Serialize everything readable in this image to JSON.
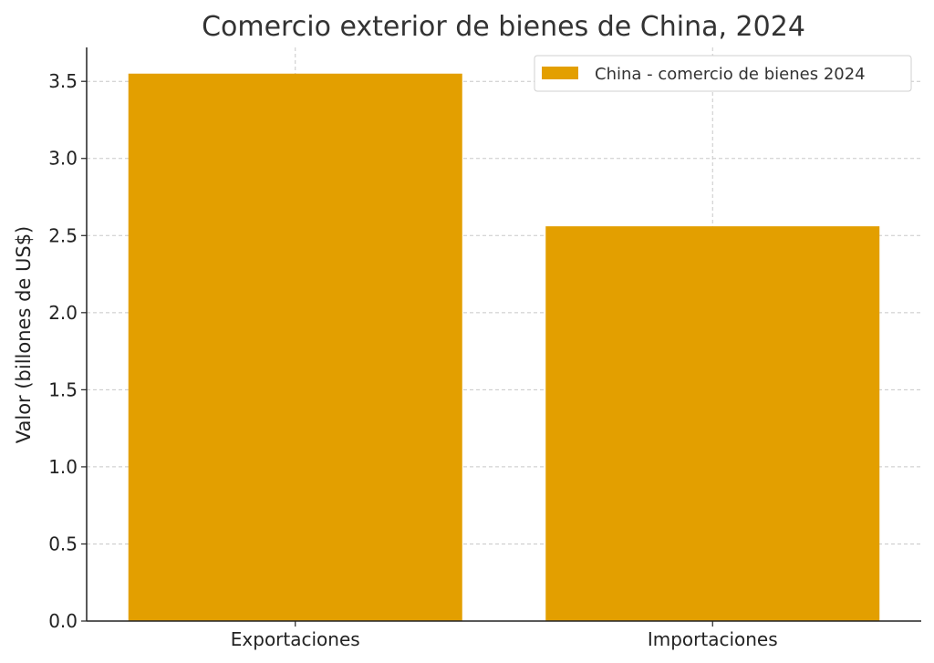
{
  "chart_data": {
    "type": "bar",
    "title": "Comercio exterior de bienes de China, 2024",
    "xlabel": "",
    "ylabel": "Valor (billones de US$)",
    "categories": [
      "Exportaciones",
      "Importaciones"
    ],
    "series": [
      {
        "name": "China - comercio de bienes 2024",
        "values": [
          3.55,
          2.56
        ]
      }
    ],
    "ylim": [
      0,
      3.72
    ],
    "yticks": [
      "0.0",
      "0.5",
      "1.0",
      "1.5",
      "2.0",
      "2.5",
      "3.0",
      "3.5"
    ],
    "grid": true,
    "legend_position": "top-right",
    "colors": {
      "bar": "#E39F00",
      "grid": "#c8c8c8",
      "text": "#333333"
    }
  }
}
